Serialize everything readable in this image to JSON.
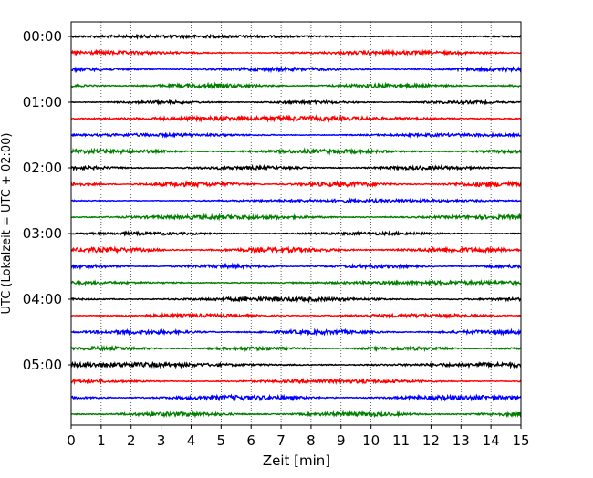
{
  "chart_data": {
    "type": "line",
    "title": "",
    "xlabel": "Zeit  [min]",
    "ylabel": "UTC (Lokalzeit = UTC + 02:00)",
    "xlim": [
      0,
      15
    ],
    "x_ticks": [
      "0",
      "1",
      "2",
      "3",
      "4",
      "5",
      "6",
      "7",
      "8",
      "9",
      "10",
      "11",
      "12",
      "13",
      "14",
      "15"
    ],
    "y_tick_labels": [
      "00:00",
      "01:00",
      "02:00",
      "03:00",
      "04:00",
      "05:00"
    ],
    "grid": {
      "vertical_dotted": true,
      "horizontal": false
    },
    "trace_interval_min": 15,
    "trace_colors": [
      "#000000",
      "#ff0000",
      "#0000ff",
      "#008000"
    ],
    "traces": [
      {
        "start": "00:00",
        "color": "#000000",
        "amplitude": 0.25
      },
      {
        "start": "00:15",
        "color": "#ff0000",
        "amplitude": 0.3
      },
      {
        "start": "00:30",
        "color": "#0000ff",
        "amplitude": 0.3
      },
      {
        "start": "00:45",
        "color": "#008000",
        "amplitude": 0.35
      },
      {
        "start": "01:00",
        "color": "#000000",
        "amplitude": 0.25
      },
      {
        "start": "01:15",
        "color": "#ff0000",
        "amplitude": 0.4
      },
      {
        "start": "01:30",
        "color": "#0000ff",
        "amplitude": 0.25
      },
      {
        "start": "01:45",
        "color": "#008000",
        "amplitude": 0.35
      },
      {
        "start": "02:00",
        "color": "#000000",
        "amplitude": 0.3
      },
      {
        "start": "02:15",
        "color": "#ff0000",
        "amplitude": 0.4
      },
      {
        "start": "02:30",
        "color": "#0000ff",
        "amplitude": 0.25
      },
      {
        "start": "02:45",
        "color": "#008000",
        "amplitude": 0.35
      },
      {
        "start": "03:00",
        "color": "#000000",
        "amplitude": 0.25
      },
      {
        "start": "03:15",
        "color": "#ff0000",
        "amplitude": 0.4
      },
      {
        "start": "03:30",
        "color": "#0000ff",
        "amplitude": 0.3
      },
      {
        "start": "03:45",
        "color": "#008000",
        "amplitude": 0.3
      },
      {
        "start": "04:00",
        "color": "#000000",
        "amplitude": 0.35
      },
      {
        "start": "04:15",
        "color": "#ff0000",
        "amplitude": 0.3
      },
      {
        "start": "04:30",
        "color": "#0000ff",
        "amplitude": 0.35
      },
      {
        "start": "04:45",
        "color": "#008000",
        "amplitude": 0.3
      },
      {
        "start": "05:00",
        "color": "#000000",
        "amplitude": 0.4
      },
      {
        "start": "05:15",
        "color": "#ff0000",
        "amplitude": 0.3
      },
      {
        "start": "05:30",
        "color": "#0000ff",
        "amplitude": 0.4
      },
      {
        "start": "05:45",
        "color": "#008000",
        "amplitude": 0.35
      }
    ]
  }
}
